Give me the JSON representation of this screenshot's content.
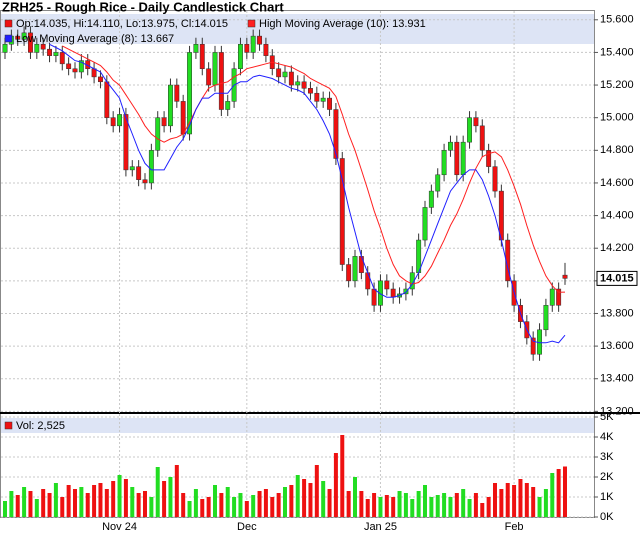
{
  "chart_data": [
    {
      "type": "candlestick",
      "title": "ZRH25 - Rough Rice - Daily Candlestick Chart",
      "ohlc_label": "Op:14.035, Hi:14.110, Lo:13.975, Cl:14.015",
      "categories": [
        null,
        null,
        null,
        null,
        null,
        null,
        null,
        null,
        null,
        null,
        null,
        null,
        null,
        null,
        null,
        null,
        null,
        null,
        "Nov 24",
        null,
        null,
        null,
        null,
        null,
        null,
        null,
        null,
        null,
        null,
        null,
        null,
        null,
        null,
        null,
        null,
        null,
        null,
        null,
        "Dec",
        null,
        null,
        null,
        null,
        null,
        null,
        null,
        null,
        null,
        null,
        null,
        null,
        null,
        null,
        null,
        null,
        null,
        null,
        null,
        null,
        "Jan 25",
        null,
        null,
        null,
        null,
        null,
        null,
        null,
        null,
        null,
        null,
        null,
        null,
        null,
        null,
        null,
        null,
        null,
        null,
        null,
        null,
        "Feb",
        null,
        null,
        null,
        null,
        null,
        null,
        null,
        null
      ],
      "open": [
        15.4,
        15.45,
        15.5,
        15.48,
        15.52,
        15.4,
        15.45,
        15.42,
        15.38,
        15.4,
        15.33,
        15.3,
        15.28,
        15.35,
        15.3,
        15.25,
        15.22,
        15.0,
        14.95,
        15.02,
        14.68,
        14.7,
        14.62,
        14.6,
        14.8,
        15.0,
        14.95,
        15.2,
        15.1,
        14.9,
        15.4,
        15.45,
        15.3,
        15.2,
        15.4,
        15.05,
        15.1,
        15.3,
        15.45,
        15.4,
        15.5,
        15.45,
        15.38,
        15.3,
        15.25,
        15.28,
        15.2,
        15.22,
        15.18,
        15.15,
        15.1,
        15.12,
        15.05,
        14.75,
        14.1,
        14.0,
        14.15,
        14.05,
        13.95,
        13.85,
        14.0,
        13.95,
        13.9,
        13.92,
        13.95,
        14.05,
        14.25,
        14.45,
        14.55,
        14.65,
        14.8,
        14.85,
        14.65,
        14.85,
        15.0,
        14.95,
        14.8,
        14.7,
        14.55,
        14.25,
        14.0,
        13.85,
        13.75,
        13.65,
        13.55,
        13.7,
        13.85,
        13.95,
        14.035
      ],
      "high": [
        15.49,
        15.54,
        15.54,
        15.56,
        15.56,
        15.49,
        15.49,
        15.46,
        15.44,
        15.44,
        15.37,
        15.34,
        15.39,
        15.39,
        15.34,
        15.29,
        15.26,
        15.04,
        15.06,
        15.06,
        14.74,
        14.74,
        14.66,
        14.84,
        15.04,
        15.04,
        15.24,
        15.24,
        15.14,
        15.44,
        15.49,
        15.49,
        15.34,
        15.44,
        15.44,
        15.14,
        15.34,
        15.49,
        15.49,
        15.54,
        15.54,
        15.49,
        15.42,
        15.34,
        15.32,
        15.32,
        15.26,
        15.26,
        15.22,
        15.19,
        15.16,
        15.16,
        15.09,
        14.79,
        14.14,
        14.19,
        14.19,
        14.09,
        13.99,
        14.04,
        14.04,
        13.99,
        13.96,
        13.99,
        14.09,
        14.29,
        14.49,
        14.59,
        14.69,
        14.84,
        14.89,
        14.89,
        14.89,
        15.04,
        15.04,
        14.99,
        14.84,
        14.74,
        14.59,
        14.29,
        14.04,
        13.89,
        13.79,
        13.69,
        13.74,
        13.89,
        13.99,
        13.99,
        14.11
      ],
      "low": [
        15.36,
        15.41,
        15.44,
        15.44,
        15.36,
        15.36,
        15.38,
        15.34,
        15.34,
        15.29,
        15.26,
        15.24,
        15.24,
        15.26,
        15.21,
        15.18,
        14.96,
        14.91,
        14.91,
        14.64,
        14.64,
        14.58,
        14.56,
        14.56,
        14.76,
        14.91,
        14.91,
        15.06,
        14.86,
        14.86,
        15.36,
        15.26,
        15.16,
        15.16,
        15.01,
        15.01,
        15.06,
        15.26,
        15.36,
        15.36,
        15.41,
        15.34,
        15.26,
        15.21,
        15.21,
        15.16,
        15.16,
        15.14,
        15.11,
        15.06,
        15.06,
        15.01,
        14.71,
        14.06,
        13.96,
        13.96,
        14.01,
        13.91,
        13.81,
        13.81,
        13.91,
        13.86,
        13.86,
        13.88,
        13.91,
        14.01,
        14.21,
        14.41,
        14.51,
        14.61,
        14.76,
        14.61,
        14.61,
        14.81,
        14.91,
        14.76,
        14.66,
        14.51,
        14.21,
        13.96,
        13.81,
        13.71,
        13.61,
        13.51,
        13.51,
        13.66,
        13.81,
        13.81,
        13.975
      ],
      "close": [
        15.45,
        15.5,
        15.48,
        15.52,
        15.4,
        15.45,
        15.42,
        15.38,
        15.4,
        15.33,
        15.3,
        15.28,
        15.35,
        15.3,
        15.25,
        15.22,
        15.0,
        14.95,
        15.02,
        14.68,
        14.7,
        14.62,
        14.6,
        14.8,
        15.0,
        14.95,
        15.2,
        15.1,
        14.9,
        15.4,
        15.45,
        15.3,
        15.2,
        15.4,
        15.05,
        15.1,
        15.3,
        15.45,
        15.4,
        15.5,
        15.45,
        15.38,
        15.3,
        15.25,
        15.28,
        15.2,
        15.22,
        15.18,
        15.15,
        15.1,
        15.12,
        15.05,
        14.75,
        14.1,
        14.0,
        14.15,
        14.05,
        13.95,
        13.85,
        14.0,
        13.95,
        13.9,
        13.92,
        13.95,
        14.05,
        14.25,
        14.45,
        14.55,
        14.65,
        14.8,
        14.85,
        14.65,
        14.85,
        15.0,
        14.95,
        14.8,
        14.7,
        14.55,
        14.25,
        14.0,
        13.85,
        13.75,
        13.65,
        13.55,
        13.7,
        13.85,
        13.95,
        13.85,
        14.015
      ],
      "up_color": "#22dd22",
      "down_color": "#ee1111",
      "series": [
        {
          "name": "High Moving Average (10): 13.931",
          "color": "#ff2020",
          "values": [
            null,
            null,
            null,
            null,
            null,
            null,
            null,
            null,
            null,
            15.44,
            15.42,
            15.4,
            15.38,
            15.36,
            15.34,
            15.32,
            15.28,
            15.23,
            15.2,
            15.14,
            15.08,
            15.02,
            14.95,
            14.9,
            14.87,
            14.85,
            14.87,
            14.88,
            14.9,
            14.97,
            15.05,
            15.12,
            15.18,
            15.2,
            15.21,
            15.22,
            15.25,
            15.27,
            15.3,
            15.31,
            15.32,
            15.33,
            15.34,
            15.33,
            15.32,
            15.31,
            15.29,
            15.27,
            15.24,
            15.22,
            15.2,
            15.18,
            15.13,
            15.02,
            14.9,
            14.8,
            14.68,
            14.56,
            14.43,
            14.32,
            14.2,
            14.1,
            14.03,
            14.0,
            13.98,
            13.99,
            14.03,
            14.09,
            14.17,
            14.25,
            14.34,
            14.41,
            14.5,
            14.6,
            14.69,
            14.76,
            14.78,
            14.79,
            14.76,
            14.68,
            14.58,
            14.47,
            14.34,
            14.22,
            14.12,
            14.03,
            13.97,
            13.93,
            13.931
          ]
        },
        {
          "name": "Low Moving Average (8): 13.667",
          "color": "#2020ff",
          "values": [
            null,
            null,
            null,
            null,
            null,
            null,
            null,
            15.45,
            15.43,
            15.41,
            15.38,
            15.35,
            15.34,
            15.32,
            15.3,
            15.28,
            15.22,
            15.17,
            15.12,
            15.0,
            14.9,
            14.8,
            14.72,
            14.68,
            14.68,
            14.68,
            14.75,
            14.82,
            14.87,
            14.95,
            15.05,
            15.12,
            15.12,
            15.15,
            15.15,
            15.15,
            15.2,
            15.22,
            15.22,
            15.25,
            15.26,
            15.25,
            15.24,
            15.22,
            15.2,
            15.18,
            15.17,
            15.15,
            15.1,
            15.05,
            14.98,
            14.9,
            14.78,
            14.62,
            14.45,
            14.3,
            14.15,
            14.05,
            13.95,
            13.92,
            13.9,
            13.9,
            13.91,
            13.93,
            13.98,
            14.05,
            14.15,
            14.25,
            14.35,
            14.45,
            14.55,
            14.6,
            14.65,
            14.68,
            14.68,
            14.62,
            14.52,
            14.4,
            14.25,
            14.08,
            13.93,
            13.8,
            13.7,
            13.63,
            13.62,
            13.62,
            13.63,
            13.62,
            13.667
          ]
        }
      ],
      "ylim": [
        13.19,
        15.66
      ],
      "yticks": [
        {
          "value": 13.2,
          "label": "13.200"
        },
        {
          "value": 13.4,
          "label": "13.400"
        },
        {
          "value": 13.6,
          "label": "13.600"
        },
        {
          "value": 13.8,
          "label": "13.800"
        },
        {
          "value": 14.0,
          "label": "14.000"
        },
        {
          "value": 14.2,
          "label": "14.200"
        },
        {
          "value": 14.4,
          "label": "14.400"
        },
        {
          "value": 14.6,
          "label": "14.600"
        },
        {
          "value": 14.8,
          "label": "14.800"
        },
        {
          "value": 15.0,
          "label": "15.000"
        },
        {
          "value": 15.2,
          "label": "15.200"
        },
        {
          "value": 15.4,
          "label": "15.400"
        },
        {
          "value": 15.6,
          "label": "15.600"
        }
      ],
      "grid": true
    },
    {
      "type": "volume",
      "series": [
        {
          "name": "Vol: 2,525",
          "values": [
            800,
            1300,
            1100,
            1500,
            1300,
            900,
            1400,
            1200,
            1700,
            1000,
            1600,
            1400,
            1500,
            1200,
            1600,
            1700,
            1400,
            1800,
            2100,
            1900,
            1500,
            1200,
            1300,
            1000,
            2500,
            1800,
            2000,
            2600,
            1200,
            800,
            1400,
            900,
            1000,
            1600,
            1200,
            1500,
            1000,
            1200,
            800,
            1100,
            1300,
            1400,
            1000,
            1200,
            1500,
            1600,
            2100,
            1900,
            1700,
            2600,
            1800,
            1400,
            3200,
            4100,
            1300,
            2000,
            1300,
            900,
            1200,
            1000,
            1100,
            1000,
            1300,
            1200,
            900,
            1300,
            1600,
            1000,
            1100,
            1200,
            1000,
            1200,
            1400,
            900,
            1200,
            700,
            1000,
            1700,
            1400,
            1700,
            1600,
            1900,
            1700,
            1500,
            1000,
            1400,
            2200,
            2400,
            2525
          ]
        }
      ],
      "ylim": [
        0,
        5100
      ],
      "yticks": [
        {
          "value": 0,
          "label": "0K"
        },
        {
          "value": 1000,
          "label": "1K"
        },
        {
          "value": 2000,
          "label": "2K"
        },
        {
          "value": 3000,
          "label": "3K"
        },
        {
          "value": 4000,
          "label": "4K"
        },
        {
          "value": 5000,
          "label": "5K"
        }
      ],
      "grid": true
    }
  ]
}
